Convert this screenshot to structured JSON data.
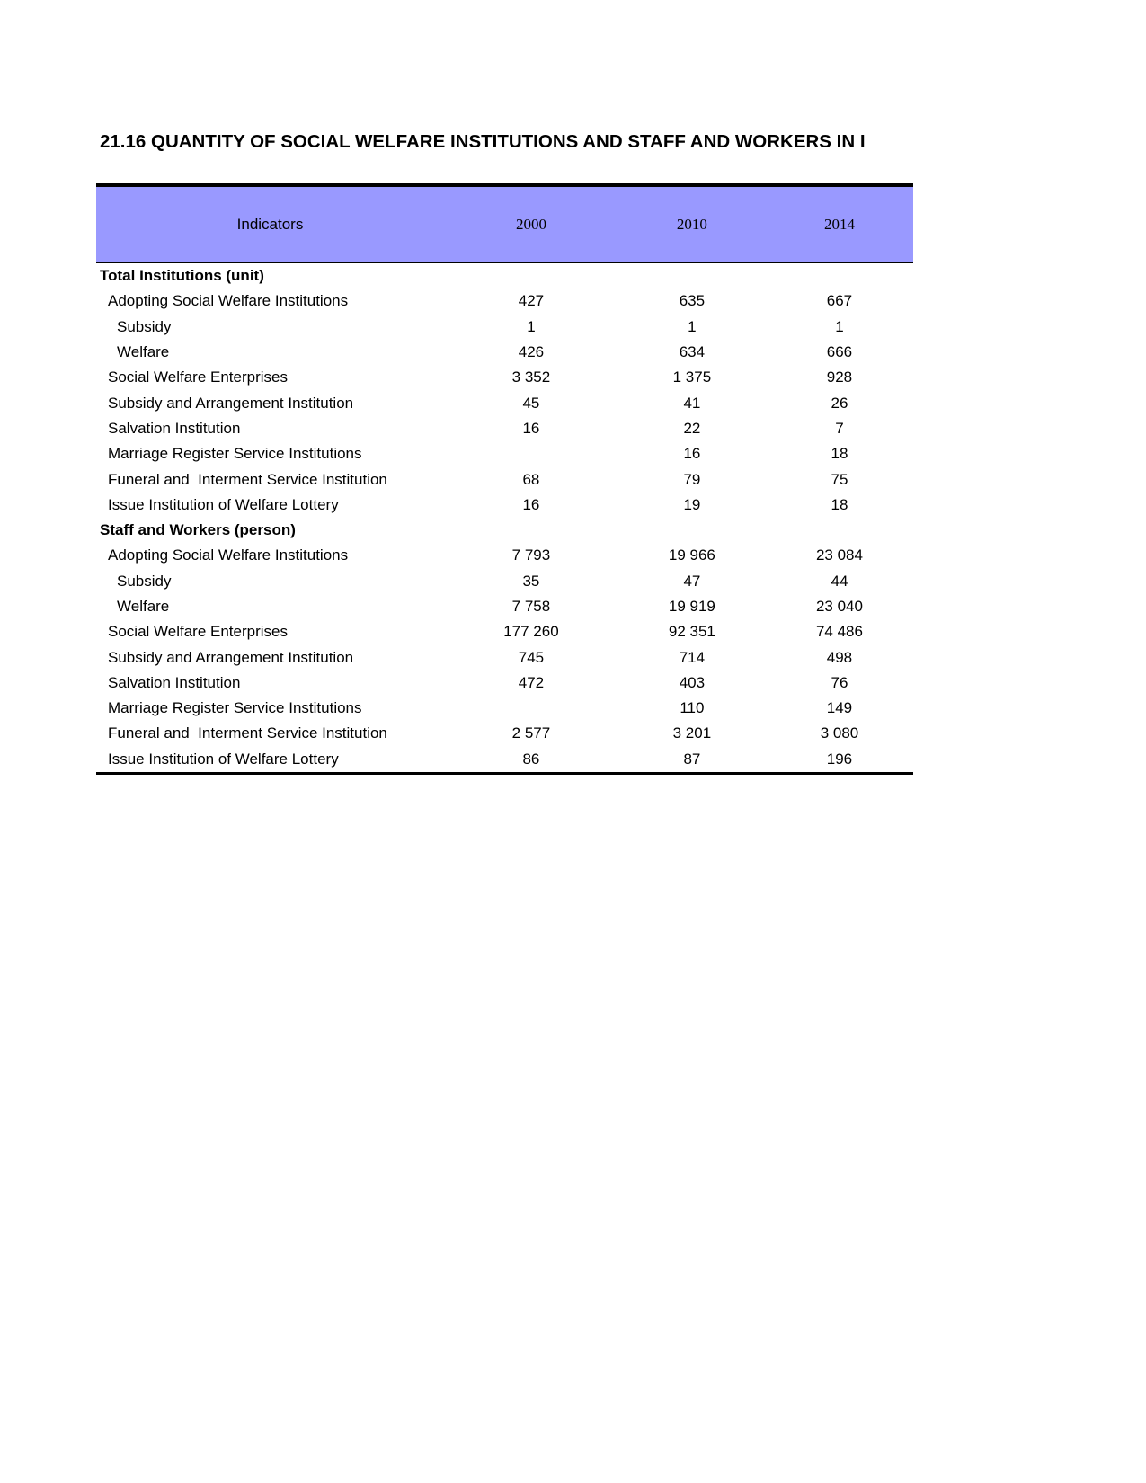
{
  "title": "21.16 QUANTITY OF SOCIAL WELFARE INSTITUTIONS AND STAFF AND WORKERS IN I",
  "header": {
    "indicator": "Indicators",
    "years": [
      "2000",
      "2010",
      "2014"
    ]
  },
  "header_color": "#9999ff",
  "rows": [
    {
      "label": "Total Institutions (unit)",
      "level": 0,
      "values": [
        "",
        "",
        ""
      ]
    },
    {
      "label": "Adopting Social Welfare Institutions",
      "level": 1,
      "values": [
        "427",
        "635",
        "667"
      ]
    },
    {
      "label": "Subsidy",
      "level": 2,
      "values": [
        "1",
        "1",
        "1"
      ]
    },
    {
      "label": "Welfare",
      "level": 2,
      "values": [
        "426",
        "634",
        "666"
      ]
    },
    {
      "label": "Social Welfare Enterprises",
      "level": 1,
      "values": [
        "3 352",
        "1 375",
        "928"
      ]
    },
    {
      "label": "Subsidy and Arrangement Institution",
      "level": 1,
      "values": [
        "45",
        "41",
        "26"
      ]
    },
    {
      "label": "Salvation Institution",
      "level": 1,
      "values": [
        "16",
        "22",
        "7"
      ]
    },
    {
      "label": "Marriage Register Service Institutions",
      "level": 1,
      "values": [
        "",
        "16",
        "18"
      ]
    },
    {
      "label": "Funeral and  Interment Service Institution",
      "level": 1,
      "values": [
        "68",
        "79",
        "75"
      ]
    },
    {
      "label": "Issue Institution of Welfare Lottery",
      "level": 1,
      "values": [
        "16",
        "19",
        "18"
      ]
    },
    {
      "label": "Staff and Workers (person)",
      "level": 0,
      "values": [
        "",
        "",
        ""
      ]
    },
    {
      "label": "Adopting Social Welfare Institutions",
      "level": 1,
      "values": [
        "7 793",
        "19 966",
        "23 084"
      ]
    },
    {
      "label": "Subsidy",
      "level": 2,
      "values": [
        "35",
        "47",
        "44"
      ]
    },
    {
      "label": "Welfare",
      "level": 2,
      "values": [
        "7 758",
        "19 919",
        "23 040"
      ]
    },
    {
      "label": "Social Welfare Enterprises",
      "level": 1,
      "values": [
        "177 260",
        "92 351",
        "74 486"
      ]
    },
    {
      "label": "Subsidy and Arrangement Institution",
      "level": 1,
      "values": [
        "745",
        "714",
        "498"
      ]
    },
    {
      "label": "Salvation Institution",
      "level": 1,
      "values": [
        "472",
        "403",
        "76"
      ]
    },
    {
      "label": "Marriage Register Service Institutions",
      "level": 1,
      "values": [
        "",
        "110",
        "149"
      ]
    },
    {
      "label": "Funeral and  Interment Service Institution",
      "level": 1,
      "values": [
        "2 577",
        "3 201",
        "3 080"
      ]
    },
    {
      "label": "Issue Institution of Welfare Lottery",
      "level": 1,
      "values": [
        "86",
        "87",
        "196"
      ]
    }
  ]
}
